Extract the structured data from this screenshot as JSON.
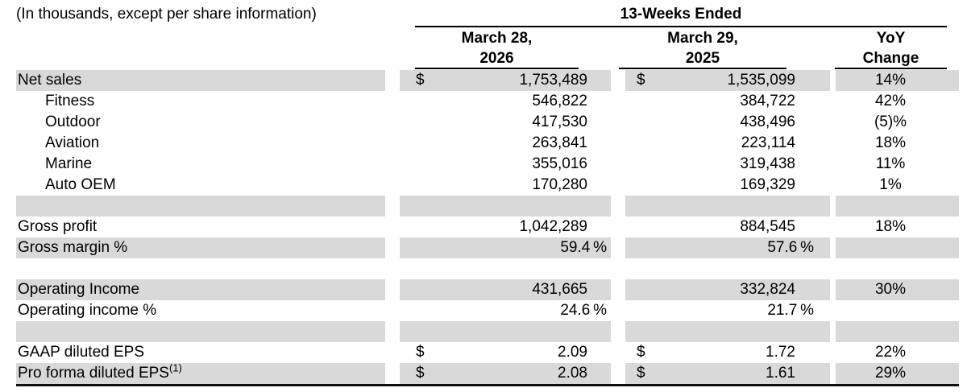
{
  "header": {
    "caption": "(In thousands, except per share information)",
    "period": "13-Weeks Ended",
    "col1_line1": "March 28,",
    "col1_line2": "2026",
    "col2_line1": "March 29,",
    "col2_line2": "2025",
    "col3_line1": "YoY",
    "col3_line2": "Change"
  },
  "colors": {
    "row_shade": "#d9d9d9",
    "text": "#000000",
    "rule": "#000000"
  },
  "rows": [
    {
      "label": "Net sales",
      "currency1": "$",
      "value1": "1,753,489",
      "currency2": "$",
      "value2": "1,535,099",
      "yoy": "14%"
    },
    {
      "label": "Fitness",
      "value1": "546,822",
      "value2": "384,722",
      "yoy": "42%"
    },
    {
      "label": "Outdoor",
      "value1": "417,530",
      "value2": "438,496",
      "yoy": "(5)%"
    },
    {
      "label": "Aviation",
      "value1": "263,841",
      "value2": "223,114",
      "yoy": "18%"
    },
    {
      "label": "Marine",
      "value1": "355,016",
      "value2": "319,438",
      "yoy": "11%"
    },
    {
      "label": "Auto OEM",
      "value1": "170,280",
      "value2": "169,329",
      "yoy": "1%"
    },
    {
      "spacer": true
    },
    {
      "label": "Gross profit",
      "value1": "1,042,289",
      "value2": "884,545",
      "yoy": "18%"
    },
    {
      "label": "Gross margin %",
      "value1": "59.4 %",
      "value2": "57.6 %",
      "yoy": ""
    },
    {
      "spacer": true
    },
    {
      "label": "Operating Income",
      "value1": "431,665",
      "value2": "332,824",
      "yoy": "30%"
    },
    {
      "label": "Operating income %",
      "value1": "24.6 %",
      "value2": "21.7 %",
      "yoy": ""
    },
    {
      "spacer": true
    },
    {
      "label": "GAAP diluted EPS",
      "currency1": "$",
      "value1": "2.09",
      "currency2": "$",
      "value2": "1.72",
      "yoy": "22%"
    },
    {
      "label": "Pro forma diluted EPS",
      "label_sup": "(1)",
      "currency1": "$",
      "value1": "2.08",
      "currency2": "$",
      "value2": "1.61",
      "yoy": "29%"
    }
  ]
}
